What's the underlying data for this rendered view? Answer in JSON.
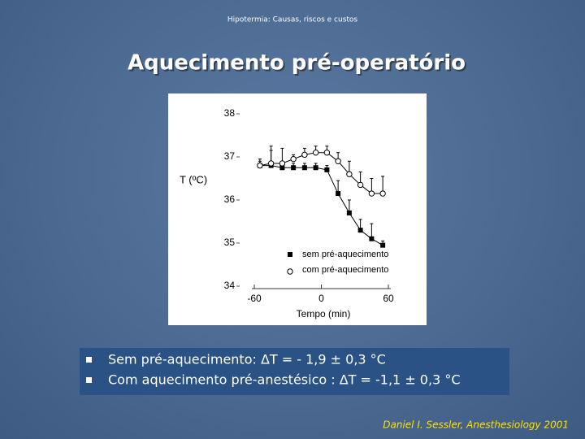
{
  "slide": {
    "header": "Hipotermia: Causas, riscos e custos",
    "title": "Aquecimento pré-operatório",
    "bullets": [
      "Sem  pré-aquecimento: ΔT = - 1,9 ± 0,3 °C",
      "Com aquecimento pré-anestésico : ΔT = -1,1 ± 0,3 °C"
    ],
    "citation": "Daniel I. Sessler, Anesthesiology 2001"
  },
  "chart_data": {
    "type": "line",
    "ylabel": "T (ºC)",
    "xlabel": "Tempo (min)",
    "x": [
      -55,
      -45,
      -35,
      -25,
      -15,
      -5,
      5,
      15,
      25,
      35,
      45,
      55
    ],
    "series": [
      {
        "name": "sem pré-aquecimento",
        "color": "#000000",
        "marker": "square",
        "values": [
          36.8,
          36.8,
          36.75,
          36.75,
          36.75,
          36.75,
          36.7,
          36.15,
          35.7,
          35.3,
          35.1,
          34.95
        ],
        "errors": [
          0.1,
          0.35,
          0.1,
          0.1,
          0.1,
          0.1,
          0.1,
          0.3,
          0.3,
          0.25,
          0.35,
          0.1
        ]
      },
      {
        "name": "com pré-aquecimento",
        "color": "#000000",
        "marker": "circle",
        "values": [
          36.8,
          36.85,
          36.85,
          36.95,
          37.05,
          37.1,
          37.1,
          36.9,
          36.6,
          36.35,
          36.15,
          36.15
        ],
        "errors": [
          0.15,
          0.4,
          0.35,
          0.1,
          0.15,
          0.15,
          0.15,
          0.2,
          0.3,
          0.3,
          0.35,
          0.4
        ]
      }
    ],
    "xlim": [
      -60,
      60
    ],
    "xticks": [
      -60,
      0,
      60
    ],
    "ylim": [
      34,
      38
    ],
    "yticks": [
      34,
      35,
      36,
      37,
      38
    ]
  }
}
